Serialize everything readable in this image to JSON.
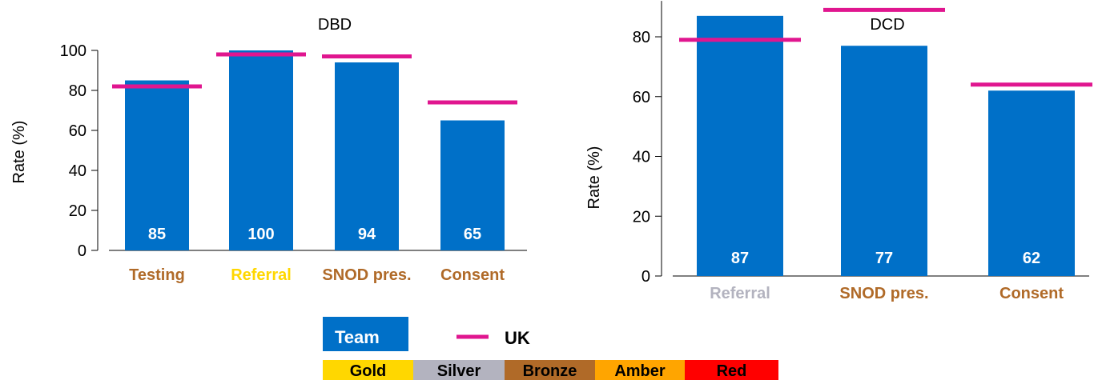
{
  "colors": {
    "team": "#0070c8",
    "uk": "#e0168f",
    "gold": "#ffd700",
    "silver": "#b3b3bf",
    "bronze": "#b06a28",
    "amber": "#ffa500",
    "red": "#ff0000"
  },
  "legend": {
    "team_label": "Team",
    "uk_label": "UK",
    "ratings": [
      {
        "label": "Gold",
        "color": "#ffd700"
      },
      {
        "label": "Silver",
        "color": "#b3b3bf"
      },
      {
        "label": "Bronze",
        "color": "#b06a28"
      },
      {
        "label": "Amber",
        "color": "#ffa500"
      },
      {
        "label": "Red",
        "color": "#ff0000"
      }
    ]
  },
  "chart_data": [
    {
      "type": "bar",
      "title": "DBD",
      "ylabel": "Rate (%)",
      "ylim": [
        0,
        100
      ],
      "yticks": [
        0,
        20,
        40,
        60,
        80,
        100
      ],
      "categories": [
        "Testing",
        "Referral",
        "SNOD pres.",
        "Consent"
      ],
      "category_colors": [
        "#b06a28",
        "#ffd700",
        "#b06a28",
        "#b06a28"
      ],
      "series": [
        {
          "name": "Team",
          "type": "bar",
          "values": [
            85,
            100,
            94,
            65
          ],
          "labels": [
            "85",
            "100",
            "94",
            "65"
          ]
        },
        {
          "name": "UK",
          "type": "marker",
          "values": [
            82,
            98,
            97,
            74
          ]
        }
      ]
    },
    {
      "type": "bar",
      "title": "DCD",
      "ylabel": "Rate (%)",
      "ylim": [
        0,
        92
      ],
      "yticks": [
        0,
        20,
        40,
        60,
        80
      ],
      "categories": [
        "Referral",
        "SNOD pres.",
        "Consent"
      ],
      "category_colors": [
        "#b3b3bf",
        "#b06a28",
        "#b06a28"
      ],
      "series": [
        {
          "name": "Team",
          "type": "bar",
          "values": [
            87,
            77,
            62
          ],
          "labels": [
            "87",
            "77",
            "62"
          ]
        },
        {
          "name": "UK",
          "type": "marker",
          "values": [
            79,
            89,
            64
          ]
        }
      ]
    }
  ]
}
